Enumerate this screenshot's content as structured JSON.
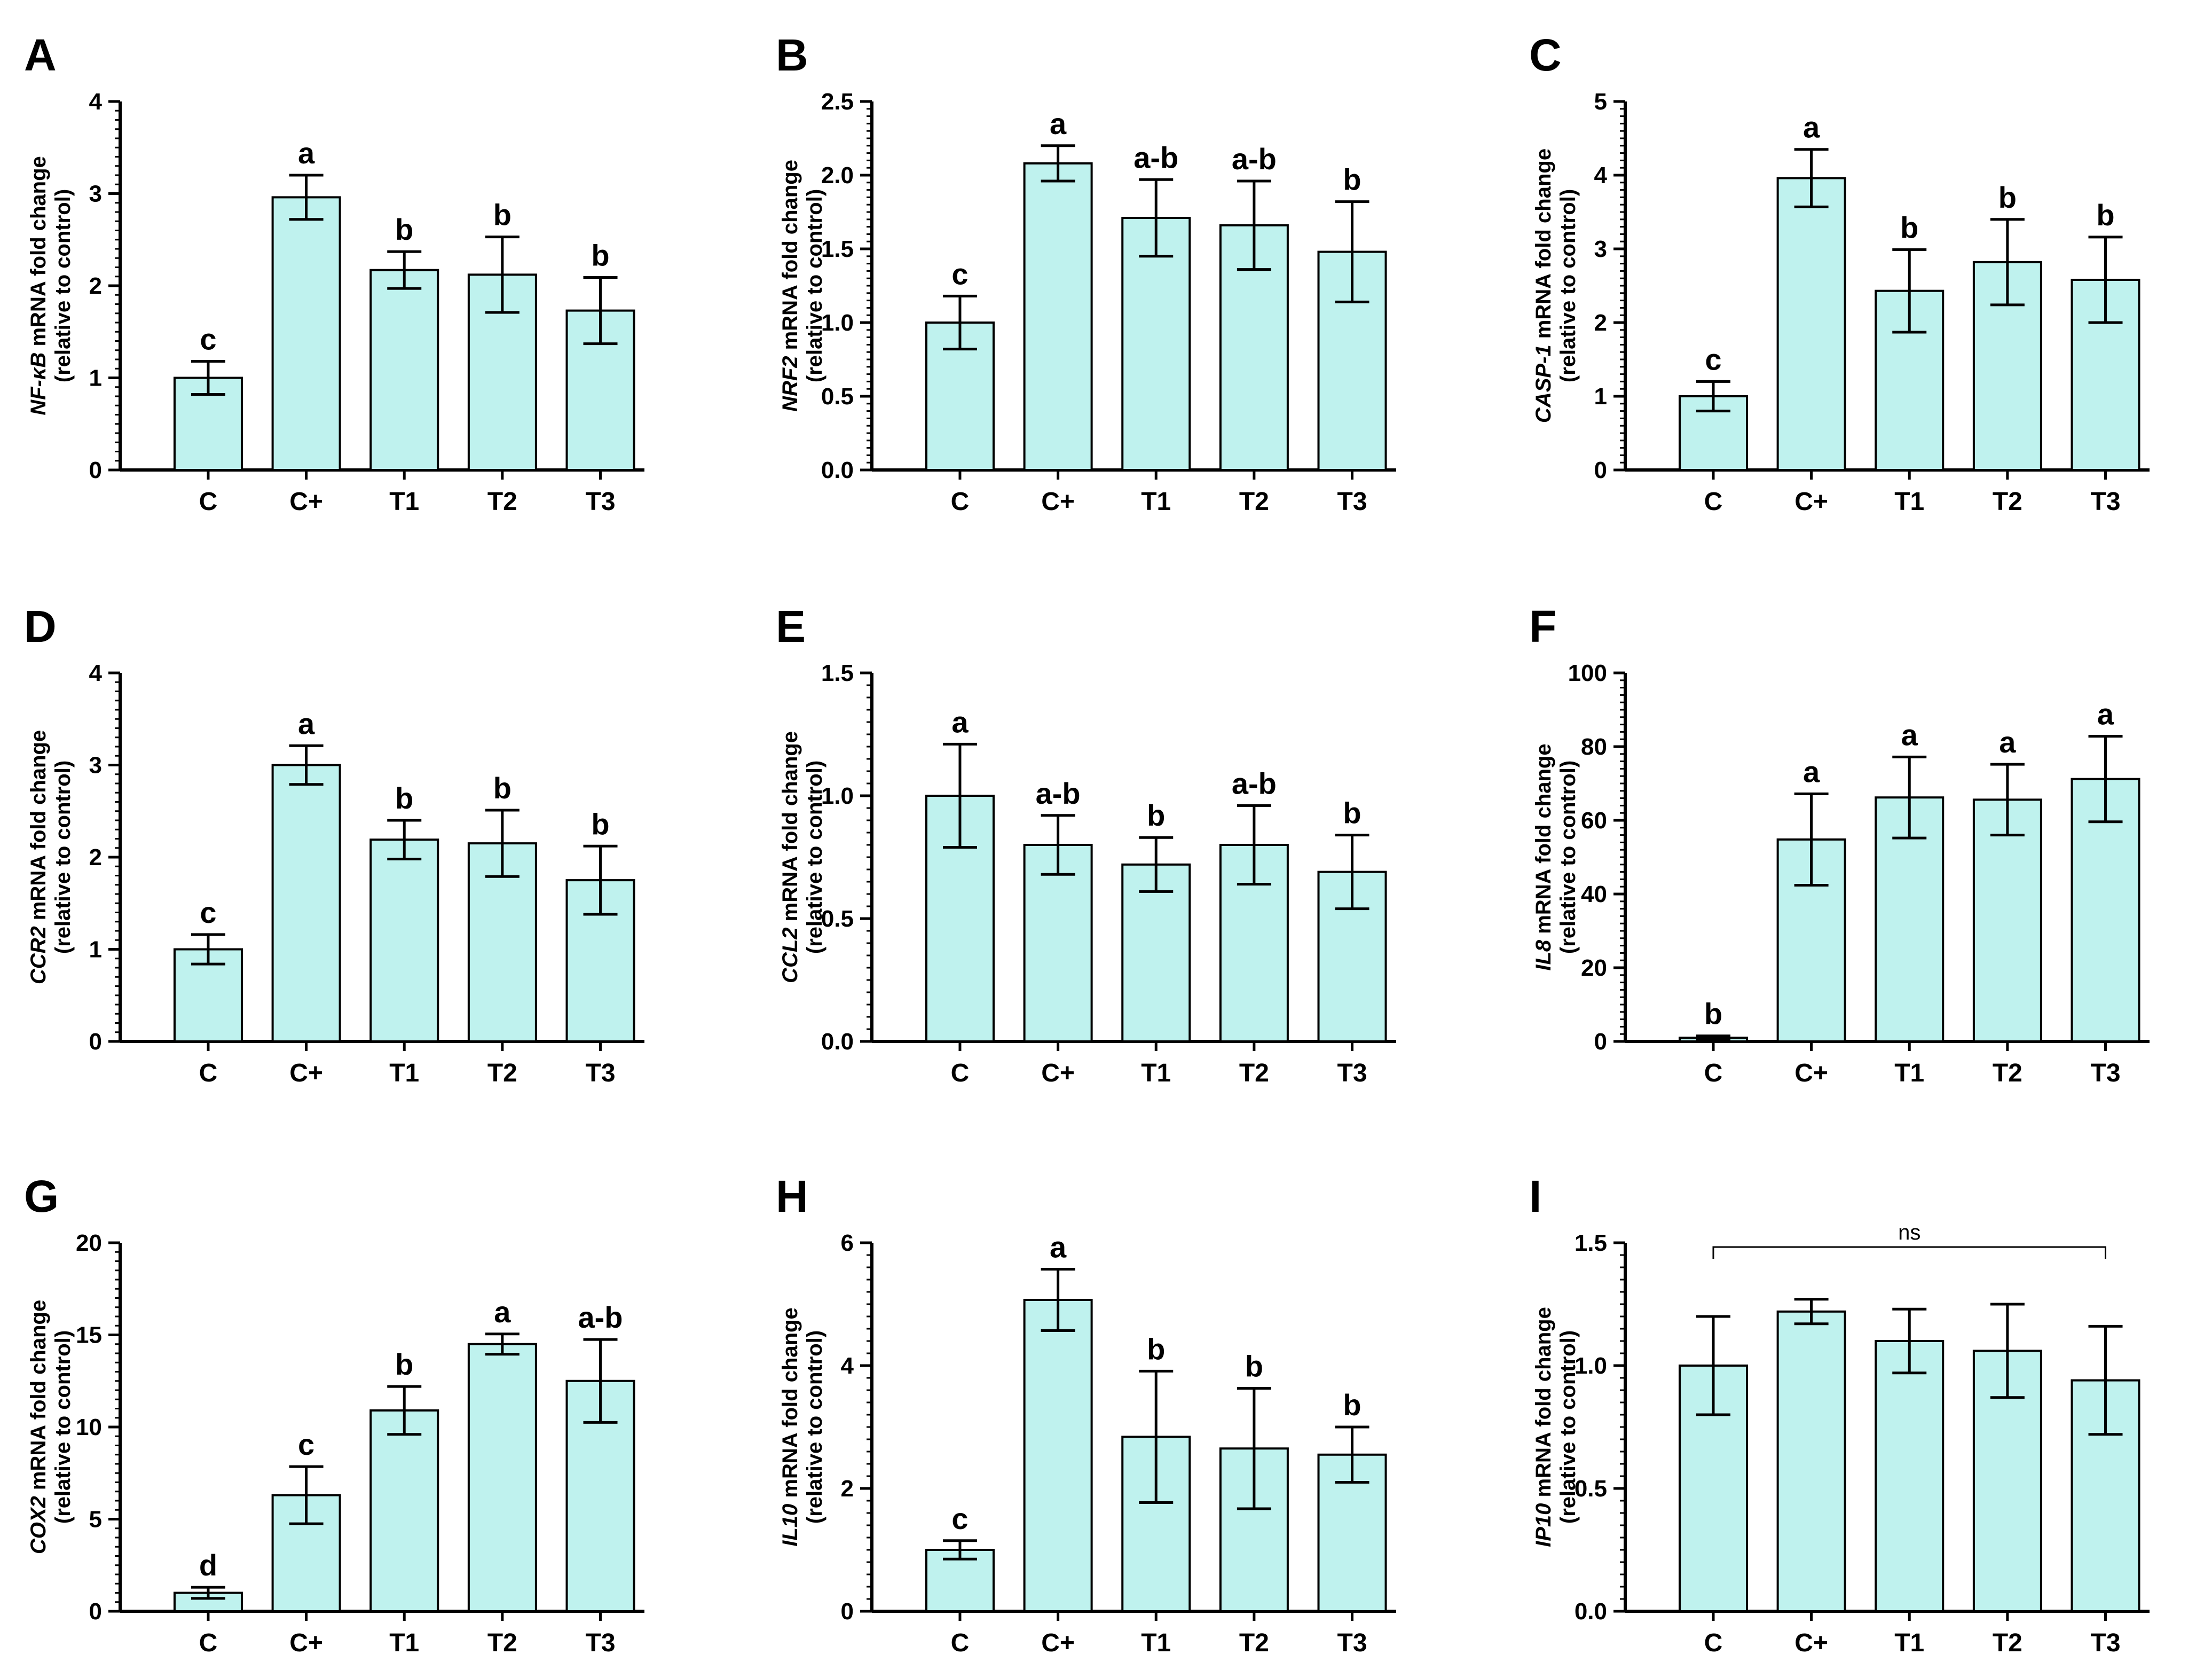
{
  "colors": {
    "bar_fill": "#bff2ee",
    "bar_stroke": "#000000",
    "axis": "#000000"
  },
  "chart_data": [
    {
      "panel": "A",
      "type": "bar",
      "gene": "NF-κB",
      "ylabel_rest": " mRNA fold change",
      "ylabel_line2": "(relative to control)",
      "categories": [
        "C",
        "C+",
        "T1",
        "T2",
        "T3"
      ],
      "values": [
        1.0,
        2.96,
        2.17,
        2.12,
        1.73
      ],
      "errors": [
        0.18,
        0.24,
        0.2,
        0.41,
        0.36
      ],
      "sig": [
        "c",
        "a",
        "b",
        "b",
        "b"
      ],
      "ylim": [
        0,
        4
      ],
      "yticks": [
        0,
        1,
        2,
        3,
        4
      ],
      "ytick_labels": [
        "0",
        "1",
        "2",
        "3",
        "4"
      ]
    },
    {
      "panel": "B",
      "type": "bar",
      "gene": "NRF2",
      "ylabel_rest": " mRNA fold change",
      "ylabel_line2": "(relative to control)",
      "categories": [
        "C",
        "C+",
        "T1",
        "T2",
        "T3"
      ],
      "values": [
        1.0,
        2.08,
        1.71,
        1.66,
        1.48
      ],
      "errors": [
        0.18,
        0.12,
        0.26,
        0.3,
        0.34
      ],
      "sig": [
        "c",
        "a",
        "a-b",
        "a-b",
        "b"
      ],
      "ylim": [
        0,
        2.5
      ],
      "yticks": [
        0,
        0.5,
        1,
        1.5,
        2,
        2.5
      ],
      "ytick_labels": [
        "0.0",
        "0.5",
        "1.0",
        "1.5",
        "2.0",
        "2.5"
      ]
    },
    {
      "panel": "C",
      "type": "bar",
      "gene": "CASP-1",
      "ylabel_rest": " mRNA fold change",
      "ylabel_line2": "(relative to control)",
      "categories": [
        "C",
        "C+",
        "T1",
        "T2",
        "T3"
      ],
      "values": [
        1.0,
        3.96,
        2.43,
        2.82,
        2.58
      ],
      "errors": [
        0.2,
        0.39,
        0.56,
        0.58,
        0.58
      ],
      "sig": [
        "c",
        "a",
        "b",
        "b",
        "b"
      ],
      "ylim": [
        0,
        5
      ],
      "yticks": [
        0,
        1,
        2,
        3,
        4,
        5
      ],
      "ytick_labels": [
        "0",
        "1",
        "2",
        "3",
        "4",
        "5"
      ]
    },
    {
      "panel": "D",
      "type": "bar",
      "gene": "CCR2",
      "ylabel_rest": " mRNA fold change",
      "ylabel_line2": "(relative to control)",
      "categories": [
        "C",
        "C+",
        "T1",
        "T2",
        "T3"
      ],
      "values": [
        1.0,
        3.0,
        2.19,
        2.15,
        1.75
      ],
      "errors": [
        0.16,
        0.21,
        0.21,
        0.36,
        0.37
      ],
      "sig": [
        "c",
        "a",
        "b",
        "b",
        "b"
      ],
      "ylim": [
        0,
        4
      ],
      "yticks": [
        0,
        1,
        2,
        3,
        4
      ],
      "ytick_labels": [
        "0",
        "1",
        "2",
        "3",
        "4"
      ]
    },
    {
      "panel": "E",
      "type": "bar",
      "gene": "CCL2",
      "ylabel_rest": " mRNA fold change",
      "ylabel_line2": "(relative to control)",
      "categories": [
        "C",
        "C+",
        "T1",
        "T2",
        "T3"
      ],
      "values": [
        1.0,
        0.8,
        0.72,
        0.8,
        0.69
      ],
      "errors": [
        0.21,
        0.12,
        0.11,
        0.16,
        0.15
      ],
      "sig": [
        "a",
        "a-b",
        "b",
        "a-b",
        "b"
      ],
      "ylim": [
        0,
        1.5
      ],
      "yticks": [
        0,
        0.5,
        1,
        1.5
      ],
      "ytick_labels": [
        "0.0",
        "0.5",
        "1.0",
        "1.5"
      ]
    },
    {
      "panel": "F",
      "type": "bar",
      "gene": "IL8",
      "ylabel_rest": " mRNA fold change",
      "ylabel_line2": "(relative to control)",
      "categories": [
        "C",
        "C+",
        "T1",
        "T2",
        "T3"
      ],
      "values": [
        1.0,
        54.8,
        66.2,
        65.6,
        71.2
      ],
      "errors": [
        0.5,
        12.4,
        11.0,
        9.6,
        11.6
      ],
      "sig": [
        "b",
        "a",
        "a",
        "a",
        "a"
      ],
      "ylim": [
        0,
        100
      ],
      "yticks": [
        0,
        20,
        40,
        60,
        80,
        100
      ],
      "ytick_labels": [
        "0",
        "20",
        "40",
        "60",
        "80",
        "100"
      ]
    },
    {
      "panel": "G",
      "type": "bar",
      "gene": "COX2",
      "ylabel_rest": " mRNA fold change",
      "ylabel_line2": "(relative to control)",
      "categories": [
        "C",
        "C+",
        "T1",
        "T2",
        "T3"
      ],
      "values": [
        1.0,
        6.3,
        10.9,
        14.5,
        12.5
      ],
      "errors": [
        0.3,
        1.55,
        1.3,
        0.55,
        2.25
      ],
      "sig": [
        "d",
        "c",
        "b",
        "a",
        "a-b"
      ],
      "ylim": [
        0,
        20
      ],
      "yticks": [
        0,
        5,
        10,
        15,
        20
      ],
      "ytick_labels": [
        "0",
        "5",
        "10",
        "15",
        "20"
      ]
    },
    {
      "panel": "H",
      "type": "bar",
      "gene": "IL10",
      "ylabel_rest": " mRNA fold change",
      "ylabel_line2": "(relative to control)",
      "categories": [
        "C",
        "C+",
        "T1",
        "T2",
        "T3"
      ],
      "values": [
        1.0,
        5.07,
        2.84,
        2.65,
        2.55
      ],
      "errors": [
        0.15,
        0.5,
        1.07,
        0.98,
        0.45
      ],
      "sig": [
        "c",
        "a",
        "b",
        "b",
        "b"
      ],
      "ylim": [
        0,
        6
      ],
      "yticks": [
        0,
        2,
        4,
        6
      ],
      "ytick_labels": [
        "0",
        "2",
        "4",
        "6"
      ]
    },
    {
      "panel": "I",
      "type": "bar",
      "gene": "IP10",
      "ylabel_rest": " mRNA fold change",
      "ylabel_line2": "(relative to control)",
      "categories": [
        "C",
        "C+",
        "T1",
        "T2",
        "T3"
      ],
      "values": [
        1.0,
        1.22,
        1.1,
        1.06,
        0.94
      ],
      "errors": [
        0.2,
        0.05,
        0.13,
        0.19,
        0.22
      ],
      "sig": [
        "",
        "",
        "",
        "",
        ""
      ],
      "bracket_label": "ns",
      "ylim": [
        0,
        1.5
      ],
      "yticks": [
        0,
        0.5,
        1,
        1.5
      ],
      "ytick_labels": [
        "0.0",
        "0.5",
        "1.0",
        "1.5"
      ]
    }
  ]
}
